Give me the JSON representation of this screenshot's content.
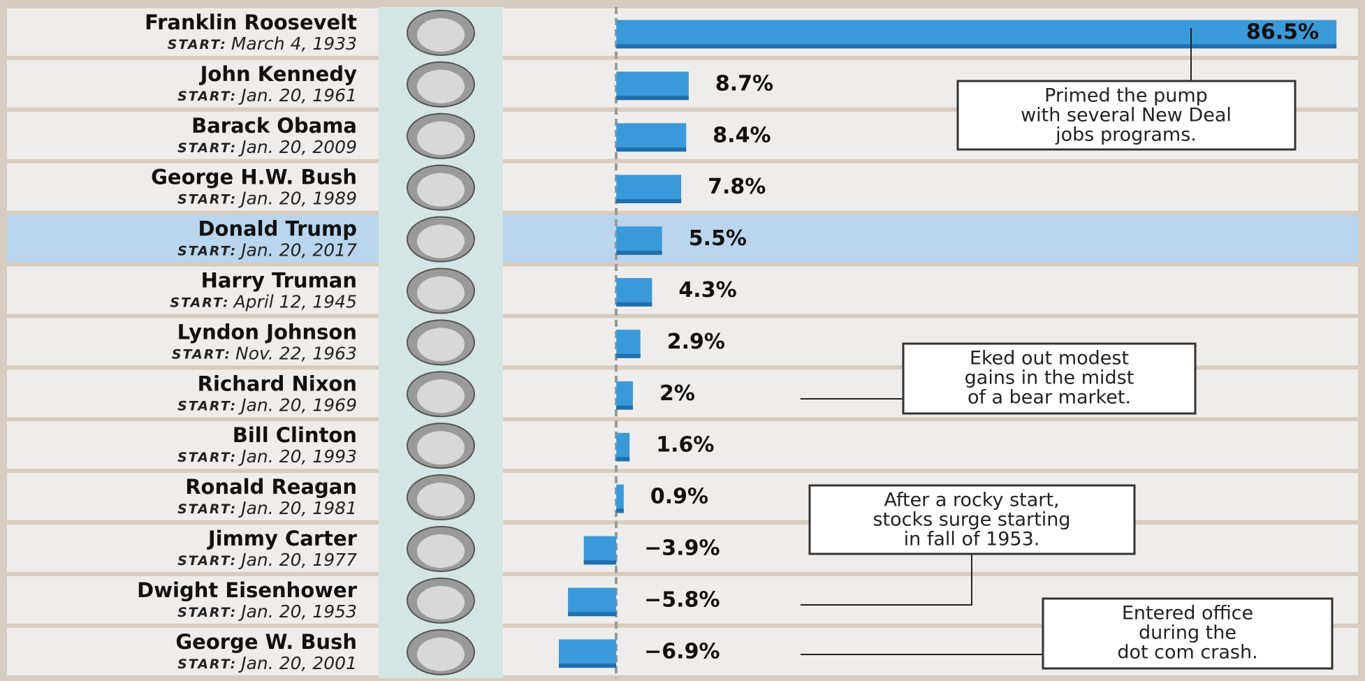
{
  "chart_data": {
    "type": "bar",
    "start_prefix": "START:",
    "categories": [
      "Franklin Roosevelt",
      "John Kennedy",
      "Barack Obama",
      "George H.W. Bush",
      "Donald Trump",
      "Harry Truman",
      "Lyndon Johnson",
      "Richard Nixon",
      "Bill Clinton",
      "Ronald Reagan",
      "Jimmy Carter",
      "Dwight Eisenhower",
      "George W. Bush"
    ],
    "start_dates": [
      "March 4, 1933",
      "Jan. 20, 1961",
      "Jan. 20, 2009",
      "Jan. 20, 1989",
      "Jan. 20, 2017",
      "April 12, 1945",
      "Nov. 22, 1963",
      "Jan. 20, 1969",
      "Jan. 20, 1993",
      "Jan. 20, 1981",
      "Jan. 20, 1977",
      "Jan. 20, 1953",
      "Jan. 20, 2001"
    ],
    "values": [
      86.5,
      8.7,
      8.4,
      7.8,
      5.5,
      4.3,
      2.9,
      2,
      1.6,
      0.9,
      -3.9,
      -5.8,
      -6.9
    ],
    "value_labels": [
      "86.5%",
      "8.7%",
      "8.4%",
      "7.8%",
      "5.5%",
      "4.3%",
      "2.9%",
      "2%",
      "1.6%",
      "0.9%",
      "−3.9%",
      "−5.8%",
      "−6.9%"
    ],
    "color": "#3a9ad9",
    "highlight": "Donald Trump",
    "xlim": [
      -10,
      88
    ],
    "annotations": [
      {
        "lines": [
          "Primed the pump",
          "with several New Deal",
          "jobs programs."
        ]
      },
      {
        "lines": [
          "Eked out modest",
          "gains in the midst",
          "of a bear market."
        ]
      },
      {
        "lines": [
          "After a rocky start,",
          "stocks surge starting",
          "in fall of 1953."
        ]
      },
      {
        "lines": [
          "Entered office",
          "during the",
          "dot com crash."
        ]
      }
    ]
  }
}
